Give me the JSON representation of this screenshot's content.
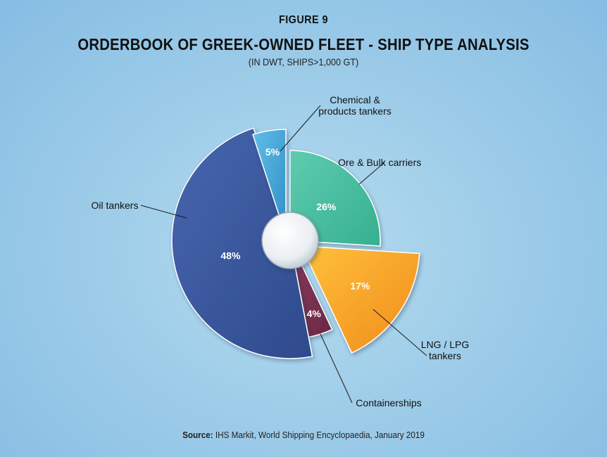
{
  "chart_data": {
    "type": "pie",
    "figure_label": "FIGURE 9",
    "title": "ORDERBOOK OF GREEK-OWNED FLEET - SHIP TYPE ANALYSIS",
    "subtitle": "(IN DWT, SHIPS>1,000 GT)",
    "slices": [
      {
        "category": "Ore & Bulk carriers",
        "category_lines": [
          "Ore & Bulk carriers"
        ],
        "value": 26,
        "label": "26%",
        "color": "#35b08f",
        "color_light": "#5fcbb0"
      },
      {
        "category": "LNG / LPG tankers",
        "category_lines": [
          "LNG / LPG",
          "tankers"
        ],
        "value": 17,
        "label": "17%",
        "color": "#f08c1c",
        "color_light": "#ffc03a"
      },
      {
        "category": "Containerships",
        "category_lines": [
          "Containerships"
        ],
        "value": 4,
        "label": "4%",
        "color": "#6a2945",
        "color_light": "#8a3a5c"
      },
      {
        "category": "Oil tankers",
        "category_lines": [
          "Oil tankers"
        ],
        "value": 48,
        "label": "48%",
        "color": "#2e4a8c",
        "color_light": "#4866ae"
      },
      {
        "category": "Chemical & products tankers",
        "category_lines": [
          "Chemical &",
          "products tankers"
        ],
        "value": 5,
        "label": "5%",
        "color": "#2f8fc6",
        "color_light": "#62bde8"
      }
    ],
    "legend": "none"
  },
  "source": {
    "prefix": "Source:",
    "text": "IHS Markit, World Shipping Encyclopaedia, January 2019"
  }
}
